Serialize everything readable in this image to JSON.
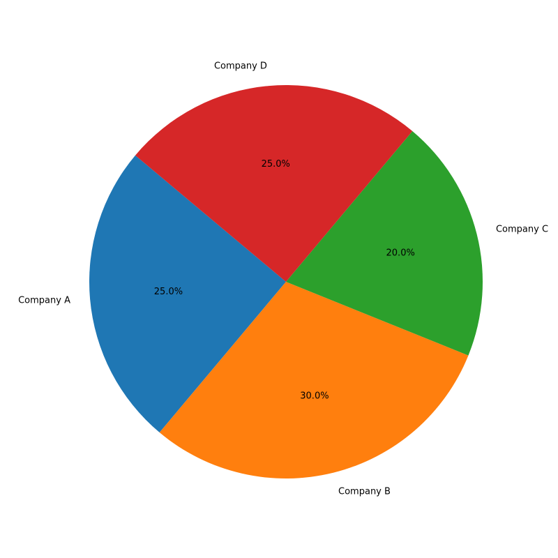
{
  "chart_data": {
    "type": "pie",
    "categories": [
      "Company A",
      "Company B",
      "Company C",
      "Company D"
    ],
    "values": [
      25,
      30,
      20,
      25
    ],
    "percent_labels": [
      "25.0%",
      "30.0%",
      "20.0%",
      "25.0%"
    ],
    "colors": [
      "#1f77b4",
      "#ff7f0e",
      "#2ca02c",
      "#d62728"
    ],
    "start_angle_deg": 140,
    "direction": "counterclockwise",
    "legend": "none"
  }
}
